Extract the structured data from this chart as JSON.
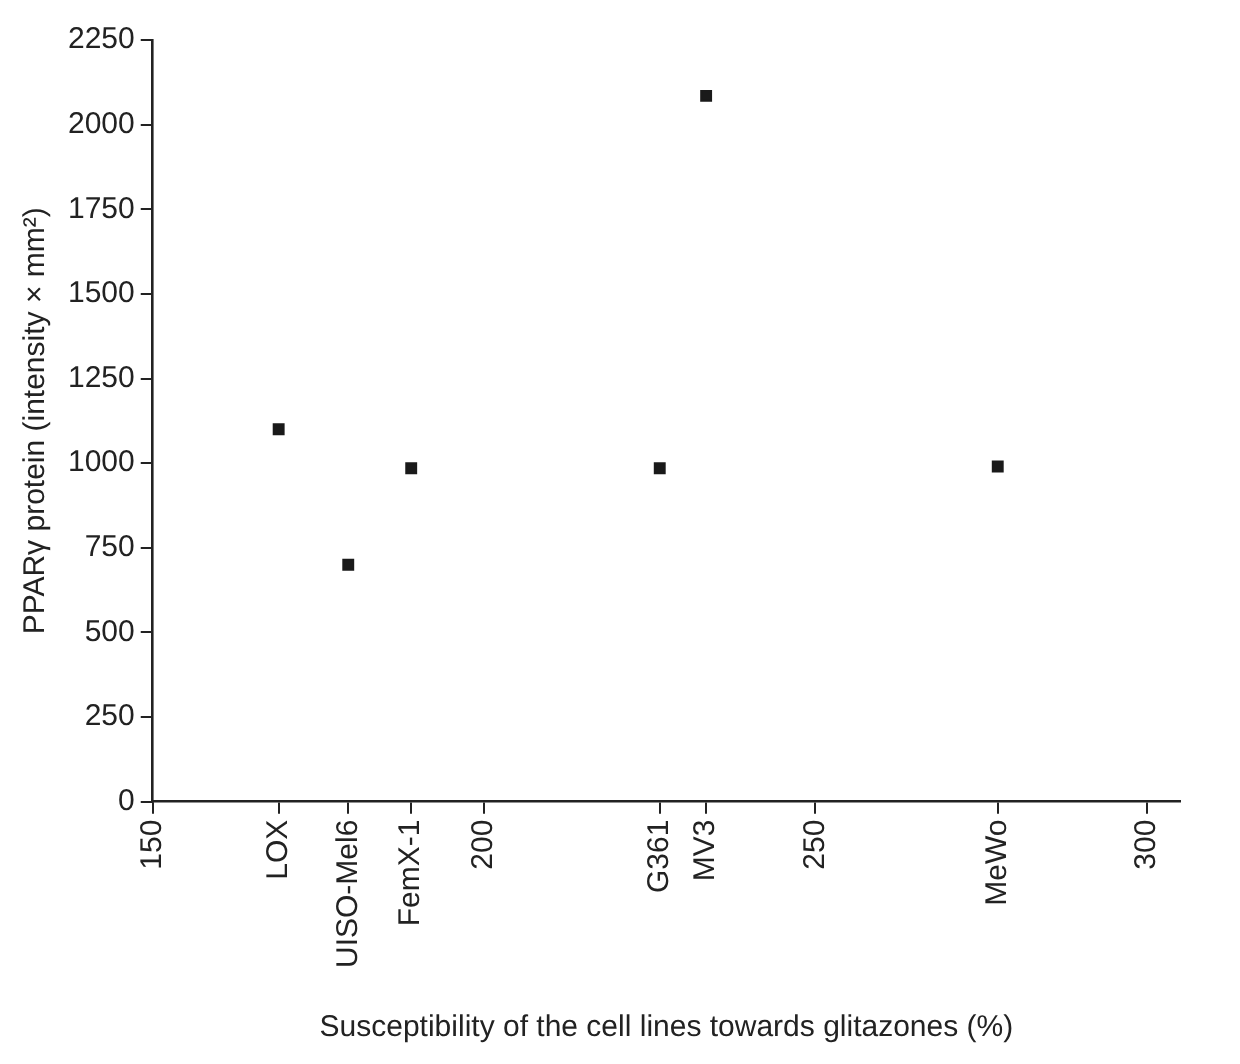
{
  "chart_data": {
    "type": "scatter",
    "xlabel": "Susceptibility of the cell lines towards glitazones (%)",
    "ylabel": "PPARγ protein (intensity × mm²)",
    "x": [
      169,
      179.5,
      189,
      226.5,
      233.5,
      277.5
    ],
    "series": [
      {
        "color": "#1a1a1a",
        "values": [
          1100,
          700,
          985,
          985,
          2085,
          990
        ]
      }
    ],
    "xlim": [
      150,
      305
    ],
    "xticks": [
      150,
      {
        "value": 169,
        "label": "LOX"
      },
      {
        "value": 179.5,
        "label": "UISO-Mel6"
      },
      {
        "value": 189,
        "label": "FemX-1"
      },
      200,
      {
        "value": 226.5,
        "label": "G361"
      },
      {
        "value": 233.5,
        "label": "MV3"
      },
      250,
      {
        "value": 277.5,
        "label": "MeWo"
      },
      300
    ],
    "ylim": [
      0,
      2250
    ],
    "yticks": [
      0,
      250,
      500,
      750,
      1000,
      1250,
      1500,
      1750,
      2000,
      2250
    ],
    "grid": false,
    "legend": false,
    "marker": "square"
  }
}
